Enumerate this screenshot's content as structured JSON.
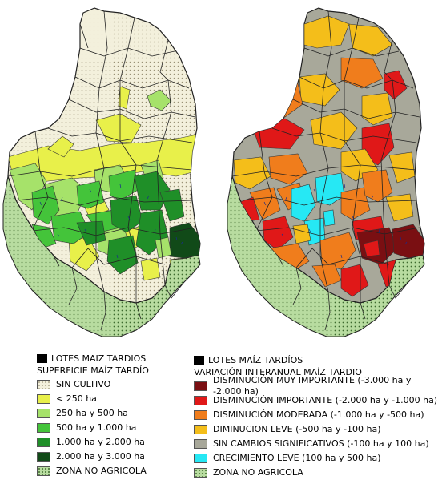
{
  "left_map": {
    "legend_header": "LOTES MAIZ TARDIOS",
    "legend_title": "SUPERFICIE MAÍZ TARDÍO",
    "legend_items": [
      {
        "label": "SIN CULTIVO",
        "color": "#f3f0dc",
        "pattern": "dotted"
      },
      {
        "label": "< 250 ha",
        "color": "#e8f04a"
      },
      {
        "label": "250 ha y 500 ha",
        "color": "#a6e26a"
      },
      {
        "label": "500 ha y 1.000 ha",
        "color": "#44c43a"
      },
      {
        "label": "1.000 ha y 2.000 ha",
        "color": "#1f8f28"
      },
      {
        "label": "2.000 ha y 3.000 ha",
        "color": "#114a18"
      },
      {
        "label": "ZONA NO AGRICOLA",
        "color": "#b8dca0",
        "pattern": "dotted"
      }
    ]
  },
  "right_map": {
    "legend_header": "LOTES MAÍZ TARDÍOS",
    "legend_title": "VARIACIÓN INTERANUAL MAÍZ TARDIO",
    "legend_items": [
      {
        "label": "DISMINUCIÓN MUY IMPORTANTE (-3.000 ha y -2.000 ha)",
        "color": "#7a0f12"
      },
      {
        "label": "DISMINUCIÓN IMPORTANTE (-2.000 ha y -1.000 ha)",
        "color": "#e01818"
      },
      {
        "label": "DISMINUCIÓN MODERADA (-1.000 ha y -500 ha)",
        "color": "#f07d1c"
      },
      {
        "label": "DIMINUCION LEVE (-500 ha y -100 ha)",
        "color": "#f4be1a"
      },
      {
        "label": "SIN CAMBIOS SIGNIFICATIVOS (-100 ha y 100 ha)",
        "color": "#a8a89a"
      },
      {
        "label": "CRECIMIENTO LEVE (100 ha y 500 ha)",
        "color": "#26e8f4"
      },
      {
        "label": "ZONA NO AGRICOLA",
        "color": "#b8dca0",
        "pattern": "dotted"
      }
    ]
  }
}
